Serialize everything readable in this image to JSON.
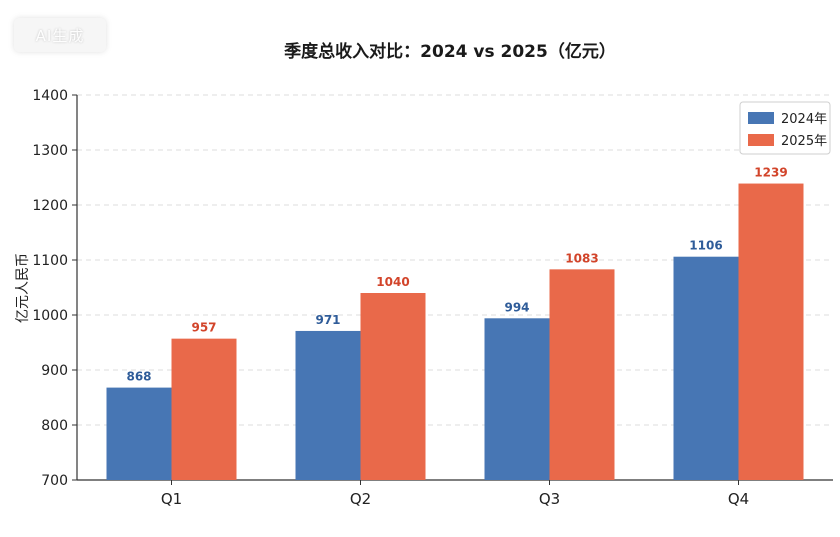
{
  "watermark": "AI生成",
  "chart_data": {
    "type": "bar",
    "title": "季度总收入对比：2024 vs 2025（亿元）",
    "xlabel": "",
    "ylabel": "亿元人民币",
    "categories": [
      "Q1",
      "Q2",
      "Q3",
      "Q4"
    ],
    "ylim": [
      700,
      1400
    ],
    "yticks": [
      700,
      800,
      900,
      1000,
      1100,
      1200,
      1300,
      1400
    ],
    "grid": true,
    "legend_position": "top-right",
    "series": [
      {
        "name": "2024年",
        "values": [
          868,
          971,
          994,
          1106
        ],
        "color": "#4776b4",
        "label_color": "#2f5c99"
      },
      {
        "name": "2025年",
        "values": [
          957,
          1040,
          1083,
          1239
        ],
        "color": "#e9694a",
        "label_color": "#d2442a"
      }
    ]
  }
}
